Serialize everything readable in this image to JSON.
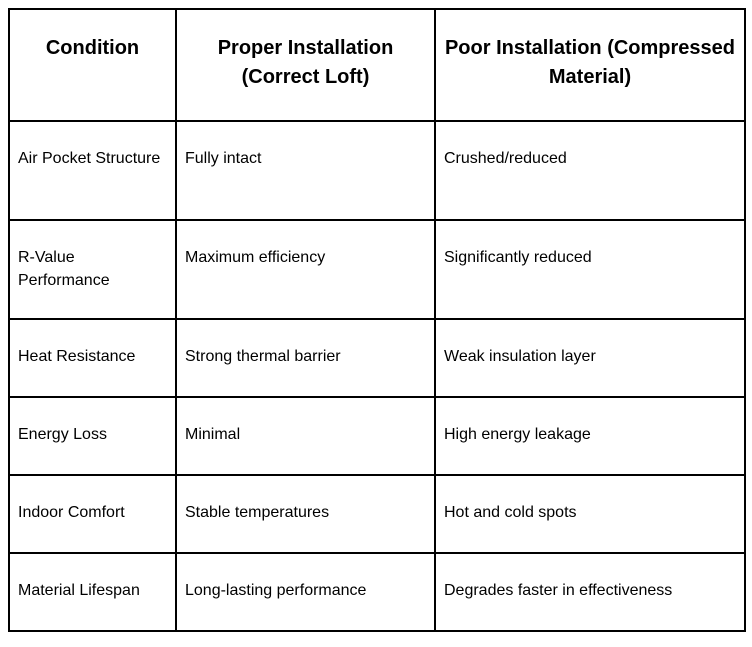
{
  "table": {
    "columns": [
      {
        "label": "Condition"
      },
      {
        "label": "Proper Installation (Correct Loft)"
      },
      {
        "label": "Poor Installation (Compressed Material)"
      }
    ],
    "rows": [
      {
        "condition": "Air Pocket Structure",
        "proper": "Fully intact",
        "poor": "Crushed/reduced"
      },
      {
        "condition": "R-Value Performance",
        "proper": "Maximum efficiency",
        "poor": "Significantly reduced"
      },
      {
        "condition": "Heat Resistance",
        "proper": "Strong thermal barrier",
        "poor": "Weak insulation layer"
      },
      {
        "condition": "Energy Loss",
        "proper": "Minimal",
        "poor": "High energy leakage"
      },
      {
        "condition": "Indoor Comfort",
        "proper": "Stable temperatures",
        "poor": "Hot and cold spots"
      },
      {
        "condition": "Material Lifespan",
        "proper": "Long-lasting performance",
        "poor": "Degrades faster in effectiveness"
      }
    ],
    "colors": {
      "border": "#000000",
      "text": "#000000",
      "background": "#ffffff"
    }
  }
}
